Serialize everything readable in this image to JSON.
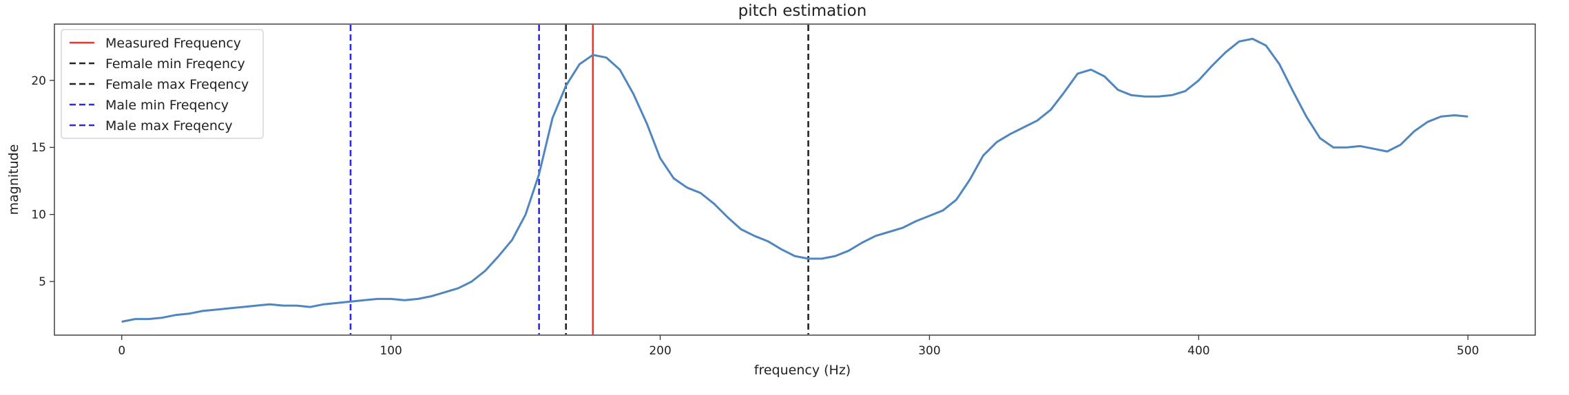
{
  "chart_data": {
    "type": "line",
    "title": "pitch estimation",
    "xlabel": "frequency (Hz)",
    "ylabel": "magnitude",
    "xlim": [
      -25,
      525
    ],
    "ylim": [
      1,
      24.2
    ],
    "xticks": [
      0,
      100,
      200,
      300,
      400,
      500
    ],
    "yticks": [
      5,
      10,
      15,
      20
    ],
    "grid": false,
    "legend_position": "upper-left",
    "series": [
      {
        "color": "#4f86c0",
        "x": [
          0,
          5,
          10,
          15,
          20,
          25,
          30,
          35,
          40,
          45,
          50,
          55,
          60,
          65,
          70,
          75,
          80,
          85,
          90,
          95,
          100,
          105,
          110,
          115,
          120,
          125,
          130,
          135,
          140,
          145,
          150,
          155,
          160,
          165,
          170,
          175,
          180,
          185,
          190,
          195,
          200,
          205,
          210,
          215,
          220,
          225,
          230,
          235,
          240,
          245,
          250,
          255,
          260,
          265,
          270,
          275,
          280,
          285,
          290,
          295,
          300,
          305,
          310,
          315,
          320,
          325,
          330,
          335,
          340,
          345,
          350,
          355,
          360,
          365,
          370,
          375,
          380,
          385,
          390,
          395,
          400,
          405,
          410,
          415,
          420,
          425,
          430,
          435,
          440,
          445,
          450,
          455,
          460,
          465,
          470,
          475,
          480,
          485,
          490,
          495,
          500
        ],
        "y": [
          2.0,
          2.2,
          2.2,
          2.3,
          2.5,
          2.6,
          2.8,
          2.9,
          3.0,
          3.1,
          3.2,
          3.3,
          3.2,
          3.2,
          3.1,
          3.3,
          3.4,
          3.5,
          3.6,
          3.7,
          3.7,
          3.6,
          3.7,
          3.9,
          4.2,
          4.5,
          5.0,
          5.8,
          6.9,
          8.1,
          10.0,
          13.0,
          17.2,
          19.6,
          21.2,
          21.9,
          21.7,
          20.8,
          19.0,
          16.8,
          14.2,
          12.7,
          12.0,
          11.6,
          10.8,
          9.8,
          8.9,
          8.4,
          8.0,
          7.4,
          6.9,
          6.7,
          6.7,
          6.9,
          7.3,
          7.9,
          8.4,
          8.7,
          9.0,
          9.5,
          9.9,
          10.3,
          11.1,
          12.6,
          14.4,
          15.4,
          16.0,
          16.5,
          17.0,
          17.8,
          19.1,
          20.5,
          20.8,
          20.3,
          19.3,
          18.9,
          18.8,
          18.8,
          18.9,
          19.2,
          20.0,
          21.1,
          22.1,
          22.9,
          23.1,
          22.6,
          21.2,
          19.2,
          17.3,
          15.7,
          15.0,
          15.0,
          15.1,
          14.9,
          14.7,
          15.2,
          16.2,
          16.9,
          17.3,
          17.4,
          17.3
        ]
      }
    ],
    "vlines": [
      {
        "label": "Measured Frequency",
        "x": 175,
        "color": "#e8372a",
        "style": "solid"
      },
      {
        "label": "Female min Freqency",
        "x": 165,
        "color": "#222222",
        "style": "dashed"
      },
      {
        "label": "Female max Freqency",
        "x": 255,
        "color": "#222222",
        "style": "dashed"
      },
      {
        "label": "Male min Freqency",
        "x": 85,
        "color": "#2a2ae0",
        "style": "dashed"
      },
      {
        "label": "Male max Freqency",
        "x": 155,
        "color": "#2a2ae0",
        "style": "dashed"
      }
    ]
  }
}
